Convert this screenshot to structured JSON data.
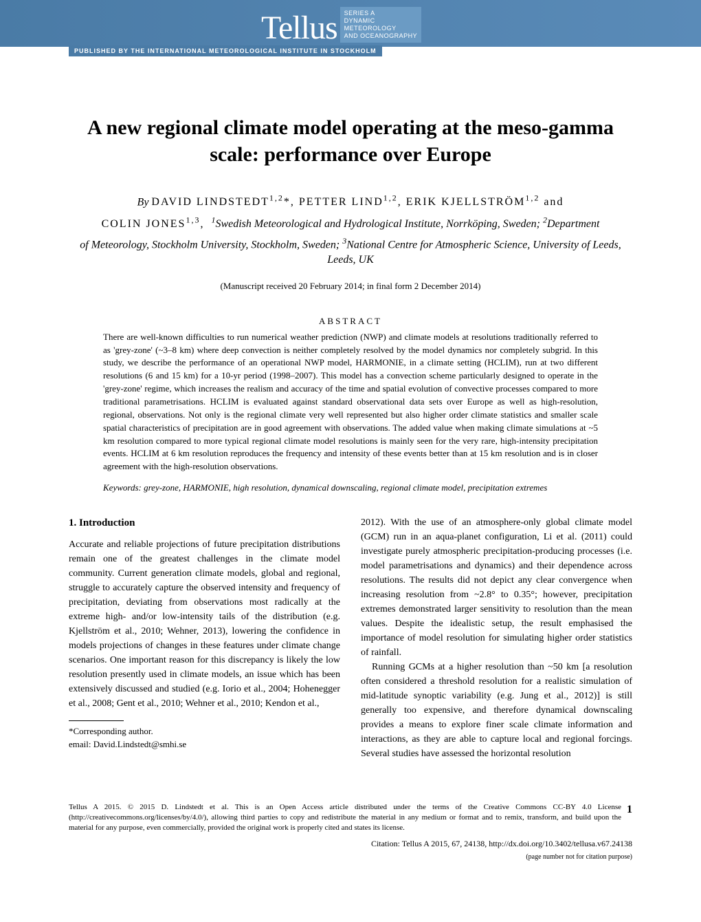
{
  "banner": {
    "logo_text": "Tellus",
    "series_line1": "SERIES A",
    "series_line2": "DYNAMIC",
    "series_line3": "METEOROLOGY",
    "series_line4": "AND OCEANOGRAPHY",
    "publisher": "PUBLISHED BY THE INTERNATIONAL METEOROLOGICAL INSTITUTE IN STOCKHOLM"
  },
  "title": "A new regional climate model operating at the meso-gamma scale: performance over Europe",
  "authors_html": "By DAVID LINDSTEDT<sup>1,2</sup>*, PETTER LIND<sup>1,2</sup>, ERIK KJELLSTRÖM<sup>1,2</sup> and COLIN JONES<sup>1,3</sup>,",
  "affiliations_html": "<sup>1</sup>Swedish Meteorological and Hydrological Institute, Norrköping, Sweden; <sup>2</sup>Department of Meteorology, Stockholm University, Stockholm, Sweden; <sup>3</sup>National Centre for Atmospheric Science, University of Leeds, Leeds, UK",
  "manuscript": "(Manuscript received 20 February 2014; in final form 2 December 2014)",
  "abstract_heading": "ABSTRACT",
  "abstract": "There are well-known difficulties to run numerical weather prediction (NWP) and climate models at resolutions traditionally referred to as 'grey-zone' (~3–8 km) where deep convection is neither completely resolved by the model dynamics nor completely subgrid. In this study, we describe the performance of an operational NWP model, HARMONIE, in a climate setting (HCLIM), run at two different resolutions (6 and 15 km) for a 10-yr period (1998–2007). This model has a convection scheme particularly designed to operate in the 'grey-zone' regime, which increases the realism and accuracy of the time and spatial evolution of convective processes compared to more traditional parametrisations. HCLIM is evaluated against standard observational data sets over Europe as well as high-resolution, regional, observations. Not only is the regional climate very well represented but also higher order climate statistics and smaller scale spatial characteristics of precipitation are in good agreement with observations. The added value when making climate simulations at ~5 km resolution compared to more typical regional climate model resolutions is mainly seen for the very rare, high-intensity precipitation events. HCLIM at 6 km resolution reproduces the frequency and intensity of these events better than at 15 km resolution and is in closer agreement with the high-resolution observations.",
  "keywords": "Keywords: grey-zone, HARMONIE, high resolution, dynamical downscaling, regional climate model, precipitation extremes",
  "section1": {
    "heading": "1.  Introduction",
    "col1_p1": "Accurate and reliable projections of future precipitation distributions remain one of the greatest challenges in the climate model community. Current generation climate models, global and regional, struggle to accurately capture the observed intensity and frequency of precipitation, deviating from observations most radically at the extreme high- and/or low-intensity tails of the distribution (e.g. Kjellström et al., 2010; Wehner, 2013), lowering the confidence in models projections of changes in these features under climate change scenarios. One important reason for this discrepancy is likely the low resolution presently used in climate models, an issue which has been extensively discussed and studied (e.g. Iorio et al., 2004; Hohenegger et al., 2008; Gent et al., 2010; Wehner et al., 2010; Kendon et al.,",
    "col2_p1": "2012). With the use of an atmosphere-only global climate model (GCM) run in an aqua-planet configuration, Li et al. (2011) could investigate purely atmospheric precipitation-producing processes (i.e. model parametrisations and dynamics) and their dependence across resolutions. The results did not depict any clear convergence when increasing resolution from ~2.8° to 0.35°; however, precipitation extremes demonstrated larger sensitivity to resolution than the mean values. Despite the idealistic setup, the result emphasised the importance of model resolution for simulating higher order statistics of rainfall.",
    "col2_p2": "Running GCMs at a higher resolution than ~50 km [a resolution often considered a threshold resolution for a realistic simulation of mid-latitude synoptic variability (e.g. Jung et al., 2012)] is still generally too expensive, and therefore dynamical downscaling provides a means to explore finer scale climate information and interactions, as they are able to capture local and regional forcings. Several studies have assessed the horizontal resolution"
  },
  "footnote": {
    "corresponding": "*Corresponding author.",
    "email": "email: David.Lindstedt@smhi.se"
  },
  "bottom": {
    "license": "Tellus A 2015. © 2015 D. Lindstedt et al. This is an Open Access article distributed under the terms of the Creative Commons CC-BY 4.0 License (http://creativecommons.org/licenses/by/4.0/), allowing third parties to copy and redistribute the material in any medium or format and to remix, transform, and build upon the material for any purpose, even commercially, provided the original work is properly cited and states its license.",
    "page_number": "1",
    "citation": "Citation: Tellus A 2015, 67, 24138, http://dx.doi.org/10.3402/tellusa.v67.24138",
    "page_note": "(page number not for citation purpose)"
  }
}
